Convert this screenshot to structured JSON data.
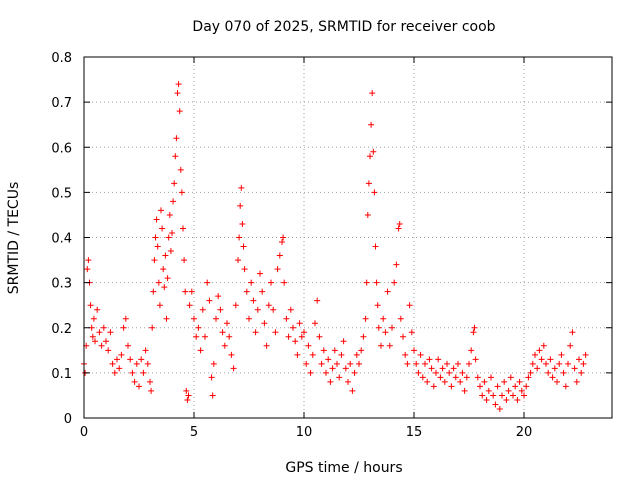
{
  "chart_data": {
    "type": "scatter",
    "title": "Day 070 of 2025, SRMTID for receiver coob",
    "xlabel": "GPS time / hours",
    "ylabel": "SRMTID / TECUs",
    "xlim": [
      0,
      24
    ],
    "ylim": [
      0,
      0.8
    ],
    "x_ticks": [
      0,
      5,
      10,
      15,
      20
    ],
    "x_tick_labels": [
      "0",
      "5",
      "10",
      "15",
      "20"
    ],
    "y_ticks": [
      0,
      0.1,
      0.2,
      0.3,
      0.4,
      0.5,
      0.6,
      0.7,
      0.8
    ],
    "y_tick_labels": [
      "0",
      "0.1",
      "0.2",
      "0.3",
      "0.4",
      "0.5",
      "0.6",
      "0.7",
      "0.8"
    ],
    "grid": true,
    "marker": "+",
    "series": [
      {
        "name": "SRMTID",
        "color": "#ff0000",
        "points": [
          [
            0.0,
            0.12
          ],
          [
            0.05,
            0.1
          ],
          [
            0.1,
            0.16
          ],
          [
            0.15,
            0.33
          ],
          [
            0.2,
            0.35
          ],
          [
            0.25,
            0.3
          ],
          [
            0.3,
            0.25
          ],
          [
            0.35,
            0.2
          ],
          [
            0.4,
            0.18
          ],
          [
            0.45,
            0.22
          ],
          [
            0.5,
            0.17
          ],
          [
            0.6,
            0.24
          ],
          [
            0.7,
            0.19
          ],
          [
            0.8,
            0.16
          ],
          [
            0.9,
            0.2
          ],
          [
            1.0,
            0.17
          ],
          [
            1.1,
            0.15
          ],
          [
            1.2,
            0.19
          ],
          [
            1.3,
            0.12
          ],
          [
            1.4,
            0.1
          ],
          [
            1.5,
            0.13
          ],
          [
            1.6,
            0.11
          ],
          [
            1.7,
            0.14
          ],
          [
            1.8,
            0.2
          ],
          [
            1.9,
            0.22
          ],
          [
            2.0,
            0.16
          ],
          [
            2.1,
            0.13
          ],
          [
            2.2,
            0.1
          ],
          [
            2.3,
            0.08
          ],
          [
            2.4,
            0.12
          ],
          [
            2.5,
            0.07
          ],
          [
            2.6,
            0.13
          ],
          [
            2.7,
            0.1
          ],
          [
            2.8,
            0.15
          ],
          [
            2.9,
            0.12
          ],
          [
            3.0,
            0.08
          ],
          [
            3.05,
            0.06
          ],
          [
            3.1,
            0.2
          ],
          [
            3.15,
            0.28
          ],
          [
            3.2,
            0.35
          ],
          [
            3.25,
            0.4
          ],
          [
            3.3,
            0.44
          ],
          [
            3.35,
            0.38
          ],
          [
            3.4,
            0.3
          ],
          [
            3.45,
            0.25
          ],
          [
            3.5,
            0.46
          ],
          [
            3.55,
            0.42
          ],
          [
            3.6,
            0.33
          ],
          [
            3.65,
            0.29
          ],
          [
            3.7,
            0.36
          ],
          [
            3.75,
            0.22
          ],
          [
            3.8,
            0.31
          ],
          [
            3.85,
            0.4
          ],
          [
            3.9,
            0.45
          ],
          [
            3.95,
            0.37
          ],
          [
            4.0,
            0.41
          ],
          [
            4.05,
            0.48
          ],
          [
            4.1,
            0.52
          ],
          [
            4.15,
            0.58
          ],
          [
            4.2,
            0.62
          ],
          [
            4.25,
            0.72
          ],
          [
            4.3,
            0.74
          ],
          [
            4.35,
            0.68
          ],
          [
            4.4,
            0.55
          ],
          [
            4.45,
            0.5
          ],
          [
            4.5,
            0.42
          ],
          [
            4.55,
            0.35
          ],
          [
            4.6,
            0.28
          ],
          [
            4.65,
            0.06
          ],
          [
            4.7,
            0.04
          ],
          [
            4.75,
            0.05
          ],
          [
            4.8,
            0.25
          ],
          [
            4.9,
            0.28
          ],
          [
            5.0,
            0.22
          ],
          [
            5.1,
            0.18
          ],
          [
            5.2,
            0.2
          ],
          [
            5.3,
            0.15
          ],
          [
            5.4,
            0.24
          ],
          [
            5.5,
            0.18
          ],
          [
            5.6,
            0.3
          ],
          [
            5.7,
            0.26
          ],
          [
            5.8,
            0.09
          ],
          [
            5.85,
            0.05
          ],
          [
            5.9,
            0.12
          ],
          [
            6.0,
            0.22
          ],
          [
            6.1,
            0.27
          ],
          [
            6.2,
            0.24
          ],
          [
            6.3,
            0.19
          ],
          [
            6.4,
            0.16
          ],
          [
            6.5,
            0.21
          ],
          [
            6.6,
            0.18
          ],
          [
            6.7,
            0.14
          ],
          [
            6.8,
            0.11
          ],
          [
            6.9,
            0.25
          ],
          [
            7.0,
            0.35
          ],
          [
            7.05,
            0.4
          ],
          [
            7.1,
            0.47
          ],
          [
            7.15,
            0.51
          ],
          [
            7.2,
            0.43
          ],
          [
            7.25,
            0.38
          ],
          [
            7.3,
            0.33
          ],
          [
            7.4,
            0.28
          ],
          [
            7.5,
            0.22
          ],
          [
            7.6,
            0.3
          ],
          [
            7.7,
            0.26
          ],
          [
            7.8,
            0.19
          ],
          [
            7.9,
            0.24
          ],
          [
            8.0,
            0.32
          ],
          [
            8.1,
            0.28
          ],
          [
            8.2,
            0.21
          ],
          [
            8.3,
            0.16
          ],
          [
            8.4,
            0.25
          ],
          [
            8.5,
            0.3
          ],
          [
            8.6,
            0.24
          ],
          [
            8.7,
            0.19
          ],
          [
            8.8,
            0.33
          ],
          [
            8.9,
            0.36
          ],
          [
            9.0,
            0.39
          ],
          [
            9.05,
            0.4
          ],
          [
            9.1,
            0.3
          ],
          [
            9.2,
            0.22
          ],
          [
            9.3,
            0.18
          ],
          [
            9.4,
            0.24
          ],
          [
            9.5,
            0.2
          ],
          [
            9.6,
            0.17
          ],
          [
            9.7,
            0.14
          ],
          [
            9.8,
            0.21
          ],
          [
            9.9,
            0.18
          ],
          [
            10.0,
            0.19
          ],
          [
            10.1,
            0.12
          ],
          [
            10.2,
            0.16
          ],
          [
            10.3,
            0.1
          ],
          [
            10.4,
            0.14
          ],
          [
            10.5,
            0.21
          ],
          [
            10.6,
            0.26
          ],
          [
            10.7,
            0.18
          ],
          [
            10.8,
            0.12
          ],
          [
            10.9,
            0.15
          ],
          [
            11.0,
            0.1
          ],
          [
            11.1,
            0.13
          ],
          [
            11.2,
            0.08
          ],
          [
            11.3,
            0.11
          ],
          [
            11.4,
            0.15
          ],
          [
            11.5,
            0.12
          ],
          [
            11.6,
            0.09
          ],
          [
            11.7,
            0.14
          ],
          [
            11.8,
            0.17
          ],
          [
            11.9,
            0.11
          ],
          [
            12.0,
            0.08
          ],
          [
            12.1,
            0.12
          ],
          [
            12.2,
            0.06
          ],
          [
            12.3,
            0.1
          ],
          [
            12.4,
            0.14
          ],
          [
            12.5,
            0.12
          ],
          [
            12.6,
            0.15
          ],
          [
            12.7,
            0.18
          ],
          [
            12.8,
            0.22
          ],
          [
            12.85,
            0.3
          ],
          [
            12.9,
            0.45
          ],
          [
            12.95,
            0.52
          ],
          [
            13.0,
            0.58
          ],
          [
            13.05,
            0.65
          ],
          [
            13.1,
            0.72
          ],
          [
            13.15,
            0.59
          ],
          [
            13.2,
            0.5
          ],
          [
            13.25,
            0.38
          ],
          [
            13.3,
            0.3
          ],
          [
            13.35,
            0.25
          ],
          [
            13.4,
            0.2
          ],
          [
            13.5,
            0.16
          ],
          [
            13.6,
            0.22
          ],
          [
            13.7,
            0.19
          ],
          [
            13.8,
            0.28
          ],
          [
            13.9,
            0.16
          ],
          [
            14.0,
            0.2
          ],
          [
            14.1,
            0.3
          ],
          [
            14.2,
            0.34
          ],
          [
            14.3,
            0.42
          ],
          [
            14.35,
            0.43
          ],
          [
            14.4,
            0.22
          ],
          [
            14.5,
            0.18
          ],
          [
            14.6,
            0.14
          ],
          [
            14.7,
            0.12
          ],
          [
            14.8,
            0.25
          ],
          [
            14.9,
            0.19
          ],
          [
            15.0,
            0.15
          ],
          [
            15.1,
            0.12
          ],
          [
            15.2,
            0.1
          ],
          [
            15.3,
            0.14
          ],
          [
            15.4,
            0.09
          ],
          [
            15.5,
            0.12
          ],
          [
            15.6,
            0.08
          ],
          [
            15.7,
            0.13
          ],
          [
            15.8,
            0.11
          ],
          [
            15.9,
            0.07
          ],
          [
            16.0,
            0.1
          ],
          [
            16.1,
            0.13
          ],
          [
            16.2,
            0.09
          ],
          [
            16.3,
            0.11
          ],
          [
            16.4,
            0.08
          ],
          [
            16.5,
            0.12
          ],
          [
            16.6,
            0.1
          ],
          [
            16.7,
            0.07
          ],
          [
            16.8,
            0.11
          ],
          [
            16.9,
            0.09
          ],
          [
            17.0,
            0.12
          ],
          [
            17.1,
            0.08
          ],
          [
            17.2,
            0.1
          ],
          [
            17.3,
            0.06
          ],
          [
            17.4,
            0.09
          ],
          [
            17.5,
            0.12
          ],
          [
            17.6,
            0.15
          ],
          [
            17.7,
            0.19
          ],
          [
            17.75,
            0.2
          ],
          [
            17.8,
            0.13
          ],
          [
            17.9,
            0.09
          ],
          [
            18.0,
            0.07
          ],
          [
            18.1,
            0.05
          ],
          [
            18.2,
            0.08
          ],
          [
            18.3,
            0.04
          ],
          [
            18.4,
            0.06
          ],
          [
            18.5,
            0.09
          ],
          [
            18.6,
            0.05
          ],
          [
            18.7,
            0.03
          ],
          [
            18.8,
            0.07
          ],
          [
            18.9,
            0.02
          ],
          [
            19.0,
            0.05
          ],
          [
            19.1,
            0.08
          ],
          [
            19.2,
            0.04
          ],
          [
            19.3,
            0.06
          ],
          [
            19.4,
            0.09
          ],
          [
            19.5,
            0.05
          ],
          [
            19.6,
            0.07
          ],
          [
            19.7,
            0.04
          ],
          [
            19.8,
            0.08
          ],
          [
            19.9,
            0.06
          ],
          [
            20.0,
            0.05
          ],
          [
            20.1,
            0.07
          ],
          [
            20.2,
            0.09
          ],
          [
            20.3,
            0.1
          ],
          [
            20.4,
            0.12
          ],
          [
            20.5,
            0.14
          ],
          [
            20.6,
            0.11
          ],
          [
            20.7,
            0.15
          ],
          [
            20.8,
            0.13
          ],
          [
            20.9,
            0.16
          ],
          [
            21.0,
            0.12
          ],
          [
            21.1,
            0.1
          ],
          [
            21.2,
            0.13
          ],
          [
            21.3,
            0.09
          ],
          [
            21.4,
            0.11
          ],
          [
            21.5,
            0.08
          ],
          [
            21.6,
            0.12
          ],
          [
            21.7,
            0.14
          ],
          [
            21.8,
            0.1
          ],
          [
            21.9,
            0.07
          ],
          [
            22.0,
            0.12
          ],
          [
            22.1,
            0.16
          ],
          [
            22.2,
            0.19
          ],
          [
            22.3,
            0.11
          ],
          [
            22.4,
            0.08
          ],
          [
            22.5,
            0.13
          ],
          [
            22.6,
            0.1
          ],
          [
            22.7,
            0.12
          ],
          [
            22.8,
            0.14
          ]
        ]
      }
    ]
  }
}
